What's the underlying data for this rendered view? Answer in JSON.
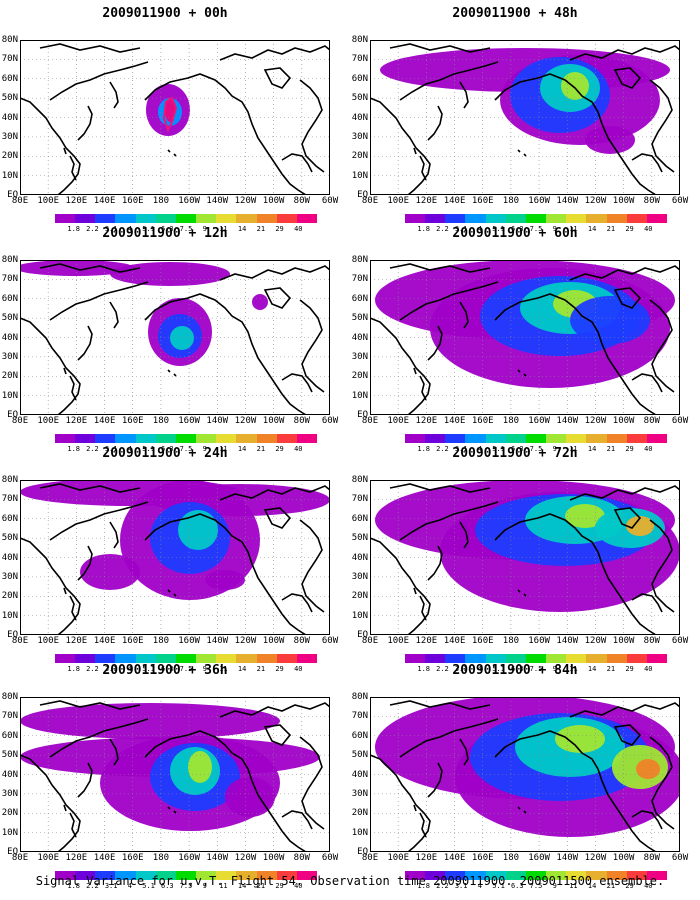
{
  "panels": [
    {
      "title": "2009011900 + 00h",
      "hours": 0
    },
    {
      "title": "2009011900 + 48h",
      "hours": 48
    },
    {
      "title": "2009011900 + 12h",
      "hours": 12
    },
    {
      "title": "2009011900 + 60h",
      "hours": 60
    },
    {
      "title": "2009011900 + 24h",
      "hours": 24
    },
    {
      "title": "2009011900 + 72h",
      "hours": 72
    },
    {
      "title": "2009011900 + 36h",
      "hours": 36
    },
    {
      "title": "2009011900 + 84h",
      "hours": 84
    }
  ],
  "lat_labels": [
    "80N",
    "70N",
    "60N",
    "50N",
    "40N",
    "30N",
    "20N",
    "10N",
    "EQ"
  ],
  "lon_labels": [
    "80E",
    "100E",
    "120E",
    "140E",
    "160E",
    "180",
    "160W",
    "140W",
    "120W",
    "100W",
    "80W",
    "60W"
  ],
  "colorbar": {
    "labels": [
      "1.8",
      "2.2",
      "3.1",
      "4",
      "5.1",
      "6.3",
      "7.5",
      "9",
      "11",
      "14",
      "21",
      "29",
      "40"
    ],
    "colors": [
      "#a000c8",
      "#6e00dc",
      "#1e3cff",
      "#0096ff",
      "#00c8c8",
      "#00d28c",
      "#00dc00",
      "#a0e632",
      "#e6dc32",
      "#e6af2d",
      "#f08228",
      "#fa3c3c",
      "#f00082"
    ]
  },
  "footer": "Signal Variance for u,v,T. Flight 54. Observation time 2009011900. 2009011500 ensemble."
}
